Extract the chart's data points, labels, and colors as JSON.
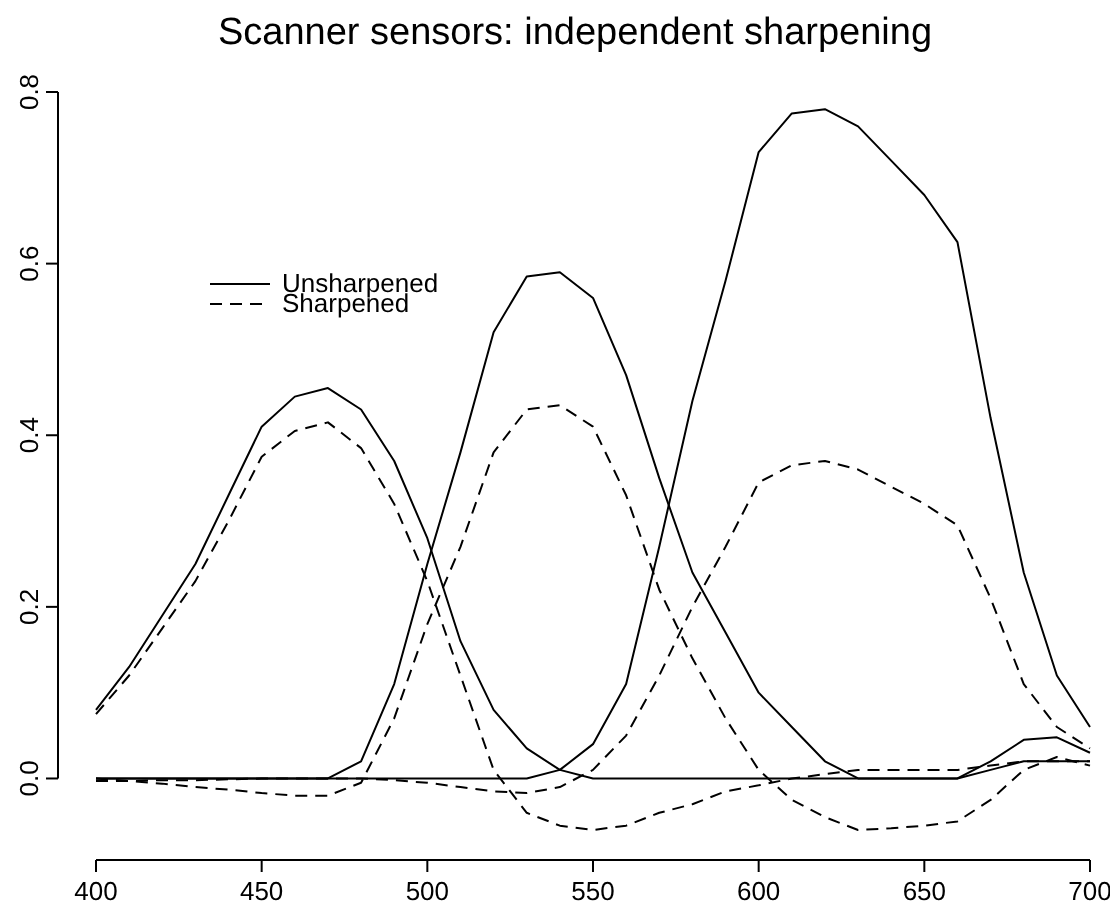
{
  "chart_data": {
    "type": "line",
    "title": "Scanner sensors: independent sharpening",
    "x": [
      400,
      410,
      420,
      430,
      440,
      450,
      460,
      470,
      480,
      490,
      500,
      510,
      520,
      530,
      540,
      550,
      560,
      570,
      580,
      590,
      600,
      610,
      620,
      630,
      640,
      650,
      660,
      670,
      680,
      690,
      700
    ],
    "series": [
      {
        "name": "Unsharpened",
        "color": "#000000",
        "line_style": "solid",
        "values": [
          0.08,
          0.13,
          0.19,
          0.25,
          0.33,
          0.41,
          0.445,
          0.455,
          0.43,
          0.37,
          0.28,
          0.16,
          0.08,
          0.035,
          0.01,
          0,
          0,
          0,
          0,
          0,
          0,
          0,
          0,
          0,
          0,
          0,
          0,
          0.01,
          0.02,
          0.02,
          0.02
        ]
      },
      {
        "color": "#000000",
        "line_style": "solid",
        "values": [
          0,
          0,
          0,
          0,
          0,
          0,
          0,
          0,
          0.02,
          0.11,
          0.25,
          0.38,
          0.52,
          0.585,
          0.59,
          0.56,
          0.47,
          0.35,
          0.24,
          0.17,
          0.1,
          0.06,
          0.02,
          0,
          0,
          0,
          0,
          0.02,
          0.045,
          0.048,
          0.03
        ]
      },
      {
        "color": "#000000",
        "line_style": "solid",
        "values": [
          0,
          0,
          0,
          0,
          0,
          0,
          0,
          0,
          0,
          0,
          0,
          0,
          0,
          0,
          0.01,
          0.04,
          0.11,
          0.27,
          0.44,
          0.58,
          0.73,
          0.775,
          0.78,
          0.76,
          0.72,
          0.68,
          0.625,
          0.42,
          0.24,
          0.12,
          0.06
        ]
      },
      {
        "name": "Sharpened",
        "color": "#000000",
        "line_style": "dashed",
        "values": [
          0.075,
          0.12,
          0.175,
          0.23,
          0.3,
          0.375,
          0.405,
          0.415,
          0.385,
          0.32,
          0.23,
          0.12,
          0.01,
          -0.04,
          -0.055,
          -0.06,
          -0.055,
          -0.04,
          -0.03,
          -0.015,
          -0.008,
          0,
          0.005,
          0.01,
          0.01,
          0.01,
          0.01,
          0.015,
          0.02,
          0.02,
          0.02
        ]
      },
      {
        "color": "#000000",
        "line_style": "dashed",
        "values": [
          0,
          -0.003,
          -0.006,
          -0.01,
          -0.013,
          -0.017,
          -0.02,
          -0.02,
          -0.005,
          0.07,
          0.18,
          0.27,
          0.38,
          0.43,
          0.435,
          0.41,
          0.33,
          0.22,
          0.14,
          0.07,
          0.01,
          -0.025,
          -0.045,
          -0.06,
          -0.058,
          -0.055,
          -0.05,
          -0.025,
          0.01,
          0.025,
          0.015
        ]
      },
      {
        "color": "#000000",
        "line_style": "dashed",
        "values": [
          -0.003,
          -0.003,
          -0.002,
          -0.002,
          -0.001,
          0,
          0,
          0,
          0,
          -0.002,
          -0.005,
          -0.01,
          -0.015,
          -0.017,
          -0.01,
          0.01,
          0.05,
          0.12,
          0.2,
          0.27,
          0.345,
          0.365,
          0.37,
          0.36,
          0.34,
          0.32,
          0.295,
          0.21,
          0.11,
          0.06,
          0.035
        ]
      }
    ],
    "xlim": [
      400,
      700
    ],
    "xticks": [
      400,
      450,
      500,
      550,
      600,
      650,
      700
    ],
    "ylim": [
      -0.095,
      0.8
    ],
    "yticks": [
      {
        "value": 0,
        "label": "0.0"
      },
      {
        "value": 0.2,
        "label": "0.2"
      },
      {
        "value": 0.4,
        "label": "0.4"
      },
      {
        "value": 0.6,
        "label": "0.6"
      },
      {
        "value": 0.8,
        "label": "0.8"
      }
    ],
    "legend": "top left",
    "grid": false
  }
}
